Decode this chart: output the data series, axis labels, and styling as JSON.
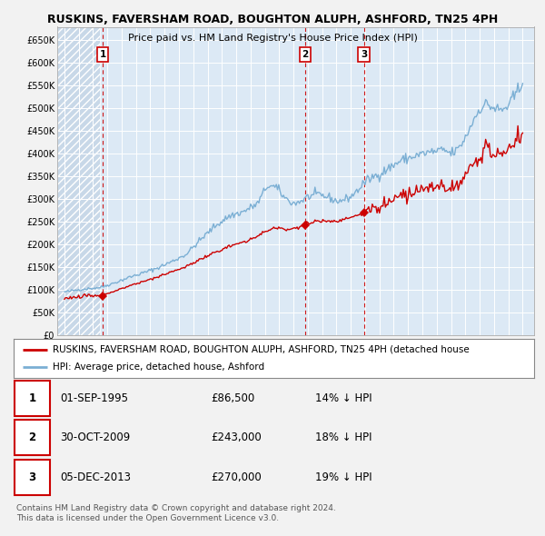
{
  "title": "RUSKINS, FAVERSHAM ROAD, BOUGHTON ALUPH, ASHFORD, TN25 4PH",
  "subtitle": "Price paid vs. HM Land Registry's House Price Index (HPI)",
  "background_color": "#f2f2f2",
  "plot_bg_color": "#dce9f5",
  "grid_color": "#ffffff",
  "hpi_line_color": "#7bafd4",
  "sale_line_color": "#cc0000",
  "sale_marker_color": "#cc0000",
  "dashed_line_color": "#cc0000",
  "ylim": [
    0,
    680000
  ],
  "yticks": [
    0,
    50000,
    100000,
    150000,
    200000,
    250000,
    300000,
    350000,
    400000,
    450000,
    500000,
    550000,
    600000,
    650000
  ],
  "ytick_labels": [
    "£0",
    "£50K",
    "£100K",
    "£150K",
    "£200K",
    "£250K",
    "£300K",
    "£350K",
    "£400K",
    "£450K",
    "£500K",
    "£550K",
    "£600K",
    "£650K"
  ],
  "xlim_start": 1992.5,
  "xlim_end": 2025.8,
  "xticks": [
    1993,
    1994,
    1995,
    1996,
    1997,
    1998,
    1999,
    2000,
    2001,
    2002,
    2003,
    2004,
    2005,
    2006,
    2007,
    2008,
    2009,
    2010,
    2011,
    2012,
    2013,
    2014,
    2015,
    2016,
    2017,
    2018,
    2019,
    2020,
    2021,
    2022,
    2023,
    2024,
    2025
  ],
  "sale_points": [
    {
      "year": 1995.67,
      "price": 86500,
      "label": "1"
    },
    {
      "year": 2009.83,
      "price": 243000,
      "label": "2"
    },
    {
      "year": 2013.92,
      "price": 270000,
      "label": "3"
    }
  ],
  "legend_entries": [
    {
      "label": "RUSKINS, FAVERSHAM ROAD, BOUGHTON ALUPH, ASHFORD, TN25 4PH (detached house",
      "color": "#cc0000",
      "lw": 2
    },
    {
      "label": "HPI: Average price, detached house, Ashford",
      "color": "#7bafd4",
      "lw": 2
    }
  ],
  "table_rows": [
    {
      "num": "1",
      "date": "01-SEP-1995",
      "price": "£86,500",
      "hpi": "14% ↓ HPI"
    },
    {
      "num": "2",
      "date": "30-OCT-2009",
      "price": "£243,000",
      "hpi": "18% ↓ HPI"
    },
    {
      "num": "3",
      "date": "05-DEC-2013",
      "price": "£270,000",
      "hpi": "19% ↓ HPI"
    }
  ],
  "footnote": "Contains HM Land Registry data © Crown copyright and database right 2024.\nThis data is licensed under the Open Government Licence v3.0."
}
